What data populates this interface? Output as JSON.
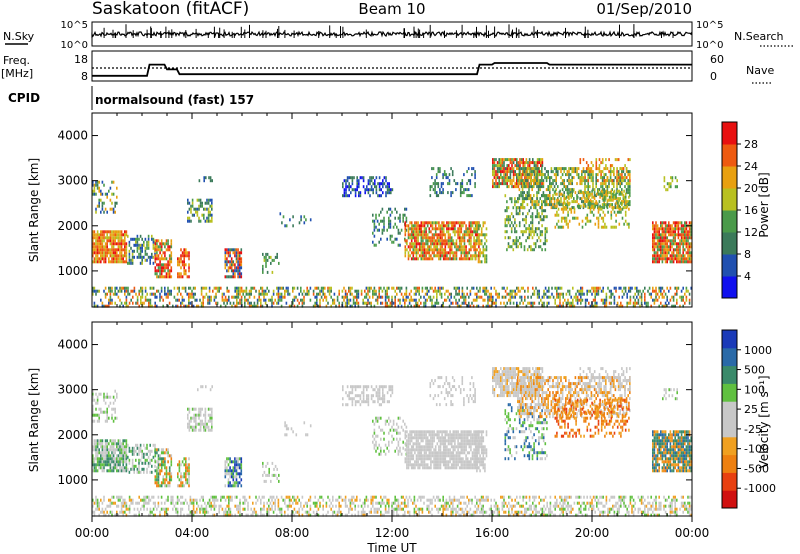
{
  "header": {
    "station": "Saskatoon (fitACF)",
    "beam": "Beam 10",
    "date": "01/Sep/2010"
  },
  "noise_panel": {
    "left_label": "N.Sky",
    "right_label": "N.Search",
    "left_ticks": [
      "10^5",
      "10^0"
    ],
    "right_ticks": [
      "10^5",
      "10^0"
    ]
  },
  "freq_panel": {
    "left_label_1": "Freq.",
    "left_label_2": "[MHz]",
    "right_label": "Nave",
    "left_ticks": [
      "18",
      "8"
    ],
    "right_ticks": [
      "60",
      "0"
    ]
  },
  "cpid": {
    "label": "CPID",
    "value": "normalsound (fast) 157"
  },
  "colors": {
    "power_scale": [
      "#1010ee",
      "#2050b0",
      "#3b7a5a",
      "#4a9a4a",
      "#b8c020",
      "#e8a010",
      "#ee5a10",
      "#e81010"
    ],
    "velocity_scale": [
      "#d01010",
      "#e84010",
      "#ee8010",
      "#f0a020",
      "#c8c8c8",
      "#c8c8c8",
      "#60c040",
      "#3a8a6a",
      "#2a6aa8",
      "#1a3ab8"
    ]
  },
  "x_axis": {
    "label": "Time UT",
    "ticks": [
      "00:00",
      "04:00",
      "08:00",
      "12:00",
      "16:00",
      "20:00",
      "00:00"
    ]
  },
  "chart_data": [
    {
      "type": "heatmap",
      "title": "",
      "ylabel": "Slant Range [km]",
      "ylim": [
        200,
        4500
      ],
      "y_ticks": [
        "1000",
        "2000",
        "3000",
        "4000"
      ],
      "colorbar_label": "Power [dB]",
      "colorbar_ticks": [
        "4",
        "8",
        "12",
        "16",
        "20",
        "24",
        "28"
      ],
      "colorbar_range": [
        0,
        32
      ]
    },
    {
      "type": "heatmap",
      "title": "",
      "ylabel": "Slant Range [km]",
      "ylim": [
        200,
        4500
      ],
      "y_ticks": [
        "1000",
        "2000",
        "3000",
        "4000"
      ],
      "colorbar_label": "Velocity [m s⁻¹]",
      "colorbar_ticks": [
        "1000",
        "500",
        "100",
        "25",
        "-25",
        "-100",
        "-500",
        "-1000"
      ]
    }
  ]
}
